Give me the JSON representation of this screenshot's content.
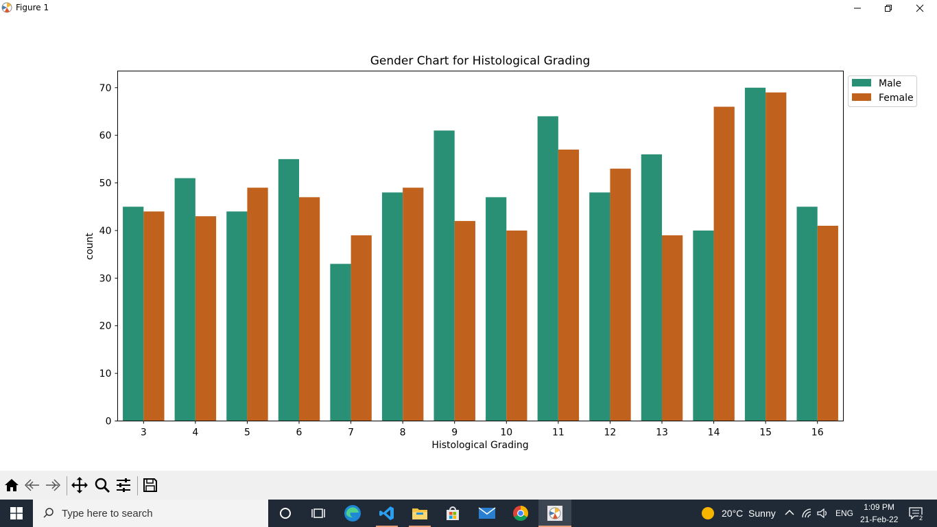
{
  "window": {
    "title": "Figure 1"
  },
  "chart_data": {
    "type": "bar",
    "title": "Gender Chart for Histological Grading",
    "xlabel": "Histological Grading",
    "ylabel": "count",
    "categories": [
      "3",
      "4",
      "5",
      "6",
      "7",
      "8",
      "9",
      "10",
      "11",
      "12",
      "13",
      "14",
      "15",
      "16"
    ],
    "series": [
      {
        "name": "Male",
        "color": "#2a9075",
        "values": [
          45,
          51,
          44,
          55,
          33,
          48,
          61,
          47,
          64,
          48,
          56,
          40,
          70,
          45
        ]
      },
      {
        "name": "Female",
        "color": "#c0621e",
        "values": [
          44,
          43,
          49,
          47,
          39,
          49,
          42,
          40,
          57,
          53,
          39,
          66,
          69,
          41
        ]
      }
    ],
    "ylim": [
      0,
      73.5
    ],
    "yticks": [
      "0",
      "10",
      "20",
      "30",
      "40",
      "50",
      "60",
      "70"
    ],
    "legend": "outside-right-top",
    "grid": false
  },
  "toolbar": {
    "buttons": [
      "home-icon",
      "back-icon",
      "forward-icon",
      "pan-icon",
      "zoom-icon",
      "configure-subplots-icon",
      "save-icon"
    ]
  },
  "taskbar": {
    "search_placeholder": "Type here to search",
    "weather": "20°C  Sunny",
    "language": "ENG",
    "time": "1:09 PM",
    "date": "21-Feb-22",
    "notification_count": "2",
    "icons": [
      "cortana-icon",
      "task-view-icon",
      "edge-icon",
      "vscode-icon",
      "file-explorer-icon",
      "store-icon",
      "mail-icon",
      "chrome-icon",
      "python-figure-icon"
    ]
  }
}
